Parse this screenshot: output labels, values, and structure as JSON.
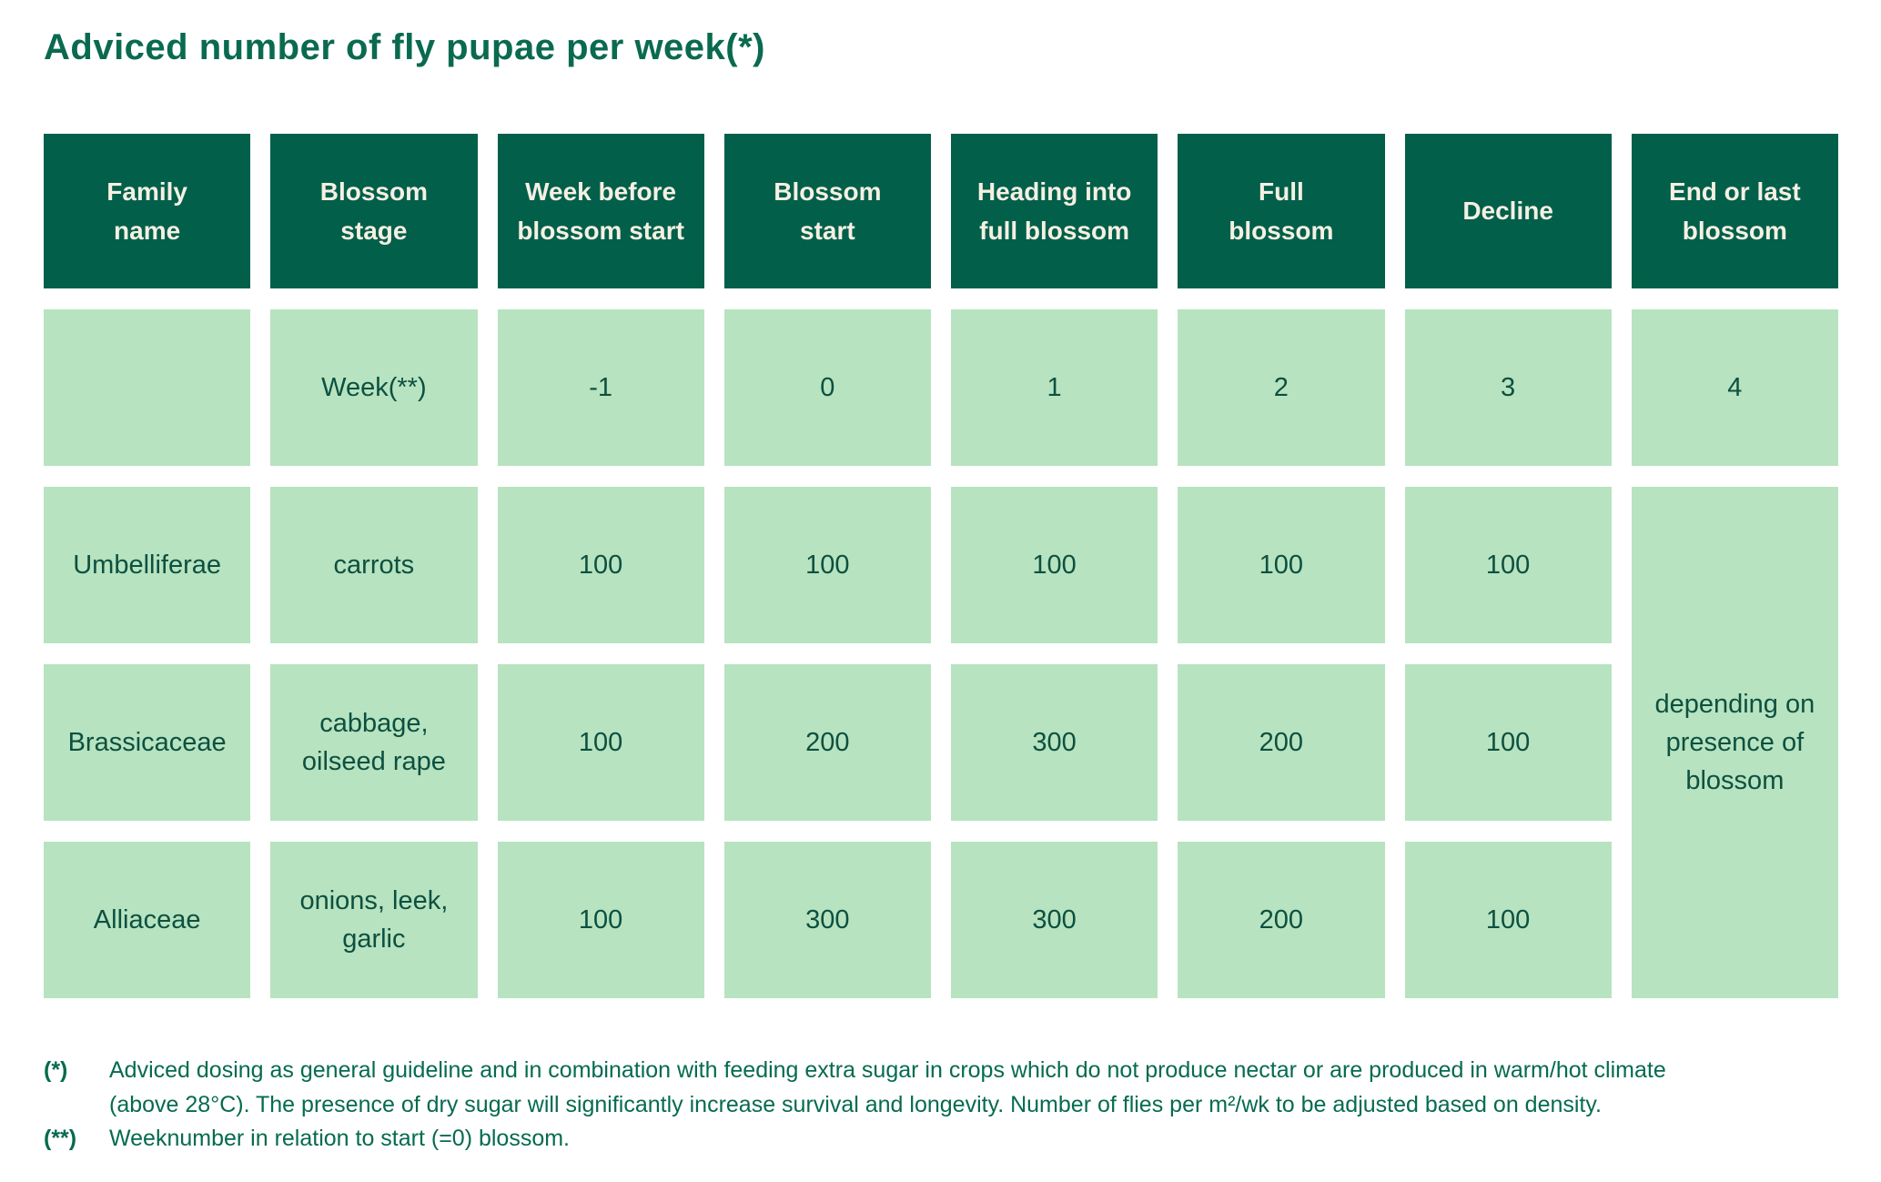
{
  "title": "Adviced number of fly pupae per week(*)",
  "colors": {
    "header_bg": "#015f4a",
    "header_text": "#f5f0e2",
    "cell_bg": "#b7e3c0",
    "cell_text": "#0d5040",
    "accent_green": "#0a6a50"
  },
  "table": {
    "headers": [
      "Family\nname",
      "Blossom\nstage",
      "Week before\nblossom start",
      "Blossom\nstart",
      "Heading into\nfull blossom",
      "Full\nblossom",
      "Decline",
      "End or last\nblossom"
    ],
    "week_row": {
      "label": "Week(**)",
      "values": [
        "-1",
        "0",
        "1",
        "2",
        "3",
        "4"
      ]
    },
    "rows": [
      {
        "family": "Umbelliferae",
        "stage": "carrots",
        "values": [
          "100",
          "100",
          "100",
          "100",
          "100"
        ]
      },
      {
        "family": "Brassicaceae",
        "stage": "cabbage,\noilseed rape",
        "values": [
          "100",
          "200",
          "300",
          "200",
          "100"
        ]
      },
      {
        "family": "Alliaceae",
        "stage": "onions, leek,\ngarlic",
        "values": [
          "100",
          "300",
          "300",
          "200",
          "100"
        ]
      }
    ],
    "merged_cell": "depending on\npresence of\nblossom"
  },
  "footnotes": [
    {
      "marker": "(*)",
      "text": "Adviced dosing as general guideline and in combination with feeding extra sugar in crops which do not produce nectar or are produced in warm/hot climate (above 28°C). The presence of dry sugar will significantly increase survival and longevity. Number of flies per m²/wk to be adjusted based on density."
    },
    {
      "marker": "(**)",
      "text": "Weeknumber in relation to start (=0) blossom."
    }
  ]
}
